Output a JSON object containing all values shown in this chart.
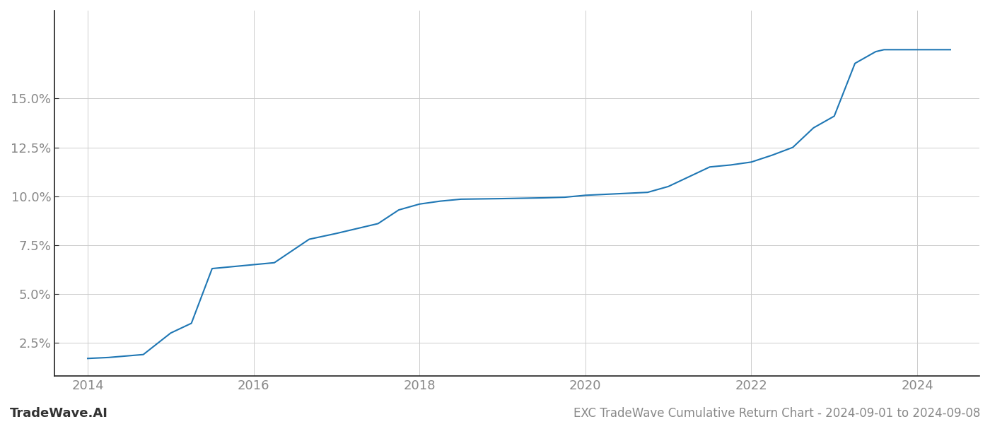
{
  "title": "EXC TradeWave Cumulative Return Chart - 2024-09-01 to 2024-09-08",
  "watermark": "TradeWave.AI",
  "line_color": "#1f77b4",
  "background_color": "#ffffff",
  "grid_color": "#cccccc",
  "x_values": [
    2014.0,
    2014.25,
    2014.67,
    2015.0,
    2015.25,
    2015.5,
    2016.0,
    2016.25,
    2016.67,
    2017.0,
    2017.5,
    2017.75,
    2018.0,
    2018.25,
    2018.5,
    2019.0,
    2019.25,
    2019.5,
    2019.75,
    2020.0,
    2020.25,
    2020.5,
    2020.75,
    2021.0,
    2021.25,
    2021.5,
    2021.75,
    2022.0,
    2022.25,
    2022.5,
    2022.75,
    2023.0,
    2023.25,
    2023.5,
    2023.6,
    2024.0,
    2024.4
  ],
  "y_values": [
    1.7,
    1.75,
    1.9,
    3.0,
    3.5,
    6.3,
    6.5,
    6.6,
    7.8,
    8.1,
    8.6,
    9.3,
    9.6,
    9.75,
    9.85,
    9.88,
    9.9,
    9.92,
    9.95,
    10.05,
    10.1,
    10.15,
    10.2,
    10.5,
    11.0,
    11.5,
    11.6,
    11.75,
    12.1,
    12.5,
    13.5,
    14.1,
    16.8,
    17.4,
    17.5,
    17.5,
    17.5
  ],
  "xlim": [
    2013.6,
    2024.75
  ],
  "ylim": [
    0.8,
    19.5
  ],
  "xticks": [
    2014,
    2016,
    2018,
    2020,
    2022,
    2024
  ],
  "yticks": [
    2.5,
    5.0,
    7.5,
    10.0,
    12.5,
    15.0
  ],
  "line_width": 1.5,
  "tick_label_color": "#888888",
  "spine_color": "#222222",
  "tick_label_fontsize": 13,
  "title_fontsize": 12,
  "watermark_fontsize": 13
}
